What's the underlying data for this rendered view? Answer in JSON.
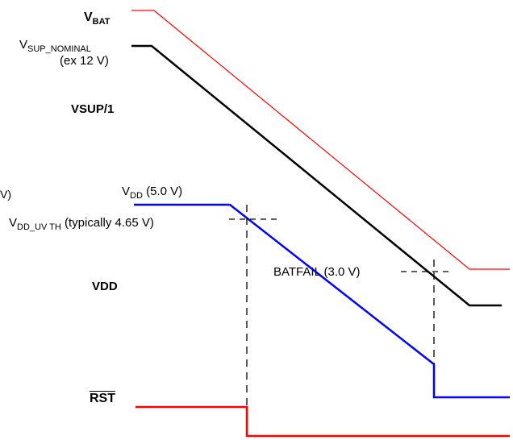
{
  "labels": {
    "vbat": {
      "main": "V",
      "sub": "BAT"
    },
    "vsup_nominal": {
      "main": "V",
      "sub": "SUP_NOMINAL"
    },
    "vsup_example": "(ex 12 V)",
    "vsup1": "VSUP/1",
    "edge_fragment": "V)",
    "vdd_level": {
      "main": "V",
      "sub": "DD",
      "suffix": " (5.0 V)"
    },
    "vdd_uv": {
      "main": "V",
      "sub": "DD_UV TH",
      "suffix": " (typically 4.65 V)"
    },
    "vdd": "VDD",
    "batfail": "BATFAIL (3.0 V)",
    "rst": "RST"
  },
  "colors": {
    "vbat": "#ff0000",
    "vsup": "#000000",
    "vdd": "#0000ff",
    "rst": "#ff0000",
    "threshold": "#000000"
  }
}
